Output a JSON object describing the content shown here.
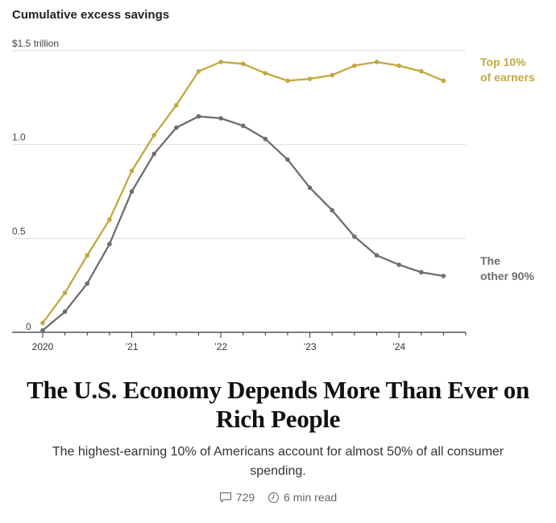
{
  "chart_data": {
    "type": "line",
    "title": "Cumulative excess savings",
    "x_tick_labels": [
      "2020",
      "’21",
      "’22",
      "’23",
      "’24"
    ],
    "x_ticks": [
      2020,
      2021,
      2022,
      2023,
      2024
    ],
    "xlim": [
      2020,
      2024.75
    ],
    "y_tick_labels": [
      "$1.5 trillion",
      "1.0",
      "0.5",
      "0"
    ],
    "y_ticks": [
      1.5,
      1.0,
      0.5,
      0
    ],
    "ylim": [
      0,
      1.5
    ],
    "grid": true,
    "series": [
      {
        "name": "Top 10% of earners",
        "label_lines": [
          "Top 10%",
          "of earners"
        ],
        "color": "#c2a83e",
        "x": [
          2020,
          2020.25,
          2020.5,
          2020.75,
          2021,
          2021.25,
          2021.5,
          2021.75,
          2022,
          2022.25,
          2022.5,
          2022.75,
          2023,
          2023.25,
          2023.5,
          2023.75,
          2024,
          2024.25,
          2024.5
        ],
        "values": [
          0.05,
          0.21,
          0.41,
          0.6,
          0.86,
          1.05,
          1.21,
          1.39,
          1.44,
          1.43,
          1.38,
          1.34,
          1.35,
          1.37,
          1.42,
          1.44,
          1.42,
          1.39,
          1.34
        ]
      },
      {
        "name": "The other 90%",
        "label_lines": [
          "The",
          "other 90%"
        ],
        "color": "#6e6e6e",
        "x": [
          2020,
          2020.25,
          2020.5,
          2020.75,
          2021,
          2021.25,
          2021.5,
          2021.75,
          2022,
          2022.25,
          2022.5,
          2022.75,
          2023,
          2023.25,
          2023.5,
          2023.75,
          2024,
          2024.25,
          2024.5
        ],
        "values": [
          0.01,
          0.11,
          0.26,
          0.47,
          0.75,
          0.95,
          1.09,
          1.15,
          1.14,
          1.1,
          1.03,
          0.92,
          0.77,
          0.65,
          0.51,
          0.41,
          0.36,
          0.32,
          0.3
        ]
      }
    ]
  },
  "article": {
    "headline": "The U.S. Economy Depends More Than Ever on Rich People",
    "dek": "The highest-earning 10% of Americans account for almost 50% of all consumer spending.",
    "comments_count": "729",
    "read_time": "6 min read",
    "comment_icon": "comment-icon",
    "clock_icon": "clock-icon"
  }
}
